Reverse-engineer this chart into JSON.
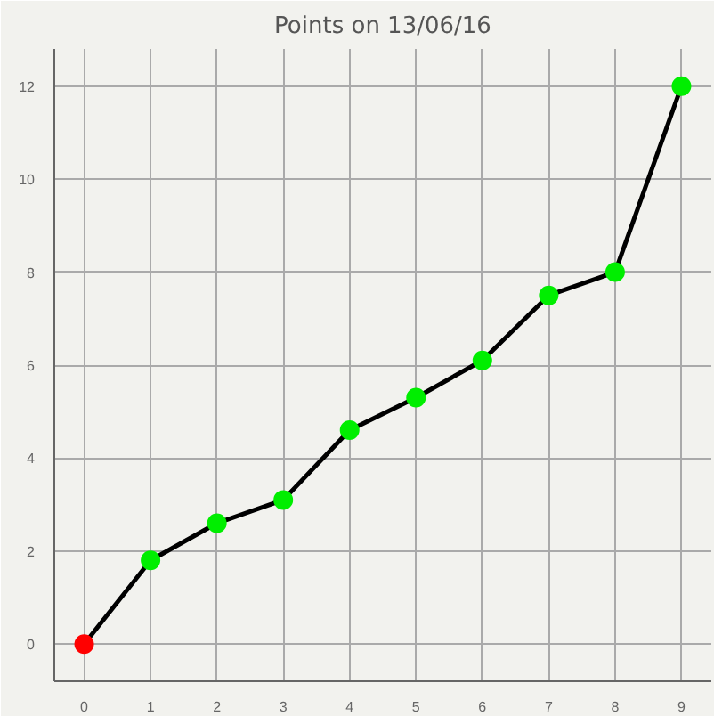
{
  "chart_data": {
    "type": "line",
    "title": "Points on 13/06/16",
    "x": [
      0,
      1,
      2,
      3,
      4,
      5,
      6,
      7,
      8,
      9
    ],
    "series": [
      {
        "color": "#000000",
        "values": [
          0,
          1.8,
          2.6,
          3.1,
          4.6,
          5.3,
          6.1,
          7.5,
          8.0,
          12.0
        ],
        "colors": [
          "#ff0000",
          "#00ee00",
          "#00ee00",
          "#00ee00",
          "#00ee00",
          "#00ee00",
          "#00ee00",
          "#00ee00",
          "#00ee00",
          "#00ee00"
        ]
      }
    ],
    "xlim": [
      -0.45,
      9.45
    ],
    "ylim": [
      -0.8,
      12.8
    ],
    "xticks": [
      0,
      1,
      2,
      3,
      4,
      5,
      6,
      7,
      8,
      9
    ],
    "yticks": [
      0,
      2,
      4,
      6,
      8,
      10,
      12
    ],
    "grid": true,
    "marker": "circle",
    "line_style": "solid"
  }
}
